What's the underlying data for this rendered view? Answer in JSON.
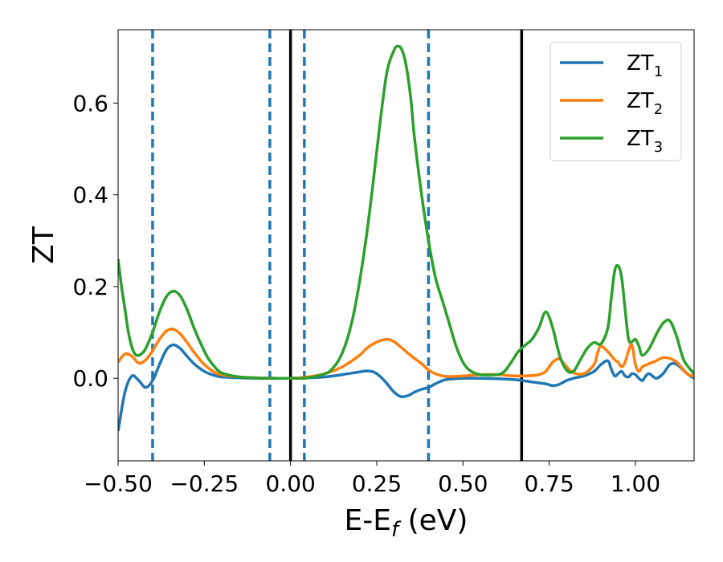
{
  "chart_data": {
    "type": "line",
    "xlabel": "E-E",
    "xlabel_sub": "f",
    "xlabel_unit": " (eV)",
    "ylabel": "ZT",
    "xlim": [
      -0.5,
      1.17
    ],
    "ylim": [
      -0.18,
      0.76
    ],
    "xticks": [
      -0.5,
      -0.25,
      0.0,
      0.25,
      0.5,
      0.75,
      1.0
    ],
    "xtick_labels": [
      "−0.50",
      "−0.25",
      "0.00",
      "0.25",
      "0.50",
      "0.75",
      "1.00"
    ],
    "yticks": [
      0.0,
      0.2,
      0.4,
      0.6
    ],
    "ytick_labels": [
      "0.0",
      "0.2",
      "0.4",
      "0.6"
    ],
    "legend_position": "top-right",
    "grid": false,
    "vlines_solid": [
      0.0,
      0.67
    ],
    "vlines_dashed": [
      -0.4,
      -0.06,
      0.04,
      0.4
    ],
    "series": [
      {
        "name": "ZT",
        "name_sub": "1",
        "color": "#1f77b4",
        "x": [
          -0.5,
          -0.48,
          -0.46,
          -0.44,
          -0.42,
          -0.4,
          -0.38,
          -0.36,
          -0.34,
          -0.32,
          -0.3,
          -0.28,
          -0.25,
          -0.22,
          -0.2,
          -0.15,
          -0.1,
          -0.05,
          0.0,
          0.05,
          0.1,
          0.15,
          0.2,
          0.22,
          0.24,
          0.26,
          0.28,
          0.3,
          0.32,
          0.34,
          0.36,
          0.38,
          0.4,
          0.42,
          0.45,
          0.5,
          0.55,
          0.6,
          0.65,
          0.7,
          0.72,
          0.74,
          0.76,
          0.78,
          0.8,
          0.82,
          0.85,
          0.88,
          0.9,
          0.92,
          0.93,
          0.94,
          0.95,
          0.96,
          0.97,
          0.98,
          0.99,
          1.0,
          1.01,
          1.02,
          1.03,
          1.04,
          1.06,
          1.08,
          1.1,
          1.12,
          1.15,
          1.17
        ],
        "y": [
          -0.115,
          -0.03,
          0.005,
          -0.005,
          -0.02,
          -0.005,
          0.03,
          0.062,
          0.073,
          0.065,
          0.048,
          0.032,
          0.015,
          0.006,
          0.003,
          0.001,
          0.0,
          0.0,
          0.0,
          0.001,
          0.003,
          0.008,
          0.014,
          0.016,
          0.014,
          0.004,
          -0.012,
          -0.03,
          -0.04,
          -0.038,
          -0.03,
          -0.024,
          -0.02,
          -0.012,
          -0.003,
          0.0,
          0.0,
          -0.001,
          -0.003,
          -0.008,
          -0.01,
          -0.012,
          -0.016,
          -0.013,
          -0.005,
          0.0,
          0.005,
          0.015,
          0.03,
          0.038,
          0.02,
          0.005,
          0.01,
          0.015,
          0.005,
          0.003,
          0.01,
          0.008,
          0.0,
          -0.005,
          0.005,
          0.01,
          0.0,
          0.01,
          0.03,
          0.03,
          0.01,
          0.0
        ]
      },
      {
        "name": "ZT",
        "name_sub": "2",
        "color": "#ff7f0e",
        "x": [
          -0.5,
          -0.48,
          -0.46,
          -0.44,
          -0.42,
          -0.4,
          -0.38,
          -0.36,
          -0.34,
          -0.32,
          -0.3,
          -0.28,
          -0.25,
          -0.22,
          -0.2,
          -0.15,
          -0.1,
          -0.05,
          0.0,
          0.05,
          0.1,
          0.15,
          0.2,
          0.22,
          0.24,
          0.26,
          0.28,
          0.3,
          0.32,
          0.34,
          0.36,
          0.38,
          0.4,
          0.42,
          0.45,
          0.5,
          0.55,
          0.6,
          0.65,
          0.7,
          0.72,
          0.74,
          0.76,
          0.78,
          0.8,
          0.82,
          0.85,
          0.88,
          0.89,
          0.9,
          0.92,
          0.94,
          0.95,
          0.96,
          0.97,
          0.98,
          0.99,
          1.0,
          1.01,
          1.02,
          1.04,
          1.06,
          1.08,
          1.1,
          1.12,
          1.15,
          1.17
        ],
        "y": [
          0.035,
          0.053,
          0.048,
          0.033,
          0.04,
          0.06,
          0.085,
          0.103,
          0.107,
          0.097,
          0.078,
          0.057,
          0.03,
          0.013,
          0.008,
          0.003,
          0.001,
          0.0,
          0.0,
          0.003,
          0.01,
          0.025,
          0.05,
          0.065,
          0.075,
          0.082,
          0.085,
          0.08,
          0.068,
          0.055,
          0.043,
          0.032,
          0.018,
          0.01,
          0.004,
          0.005,
          0.008,
          0.008,
          0.005,
          0.006,
          0.008,
          0.015,
          0.035,
          0.042,
          0.025,
          0.012,
          0.01,
          0.03,
          0.055,
          0.07,
          0.058,
          0.04,
          0.035,
          0.025,
          0.035,
          0.06,
          0.072,
          0.03,
          0.015,
          0.025,
          0.032,
          0.038,
          0.045,
          0.043,
          0.035,
          0.01,
          0.005
        ]
      },
      {
        "name": "ZT",
        "name_sub": "3",
        "color": "#2ca02c",
        "x": [
          -0.5,
          -0.49,
          -0.48,
          -0.47,
          -0.46,
          -0.45,
          -0.44,
          -0.43,
          -0.42,
          -0.4,
          -0.38,
          -0.36,
          -0.34,
          -0.32,
          -0.3,
          -0.28,
          -0.26,
          -0.24,
          -0.22,
          -0.2,
          -0.15,
          -0.1,
          -0.05,
          0.0,
          0.05,
          0.1,
          0.12,
          0.14,
          0.16,
          0.18,
          0.2,
          0.22,
          0.24,
          0.26,
          0.28,
          0.3,
          0.31,
          0.32,
          0.33,
          0.34,
          0.35,
          0.36,
          0.38,
          0.4,
          0.42,
          0.44,
          0.46,
          0.48,
          0.5,
          0.52,
          0.55,
          0.6,
          0.62,
          0.64,
          0.66,
          0.68,
          0.7,
          0.72,
          0.74,
          0.76,
          0.78,
          0.8,
          0.82,
          0.84,
          0.86,
          0.88,
          0.9,
          0.92,
          0.93,
          0.94,
          0.95,
          0.96,
          0.97,
          0.98,
          0.99,
          1.0,
          1.01,
          1.02,
          1.04,
          1.06,
          1.08,
          1.1,
          1.12,
          1.14,
          1.17
        ],
        "y": [
          0.26,
          0.2,
          0.15,
          0.1,
          0.068,
          0.052,
          0.05,
          0.055,
          0.065,
          0.1,
          0.145,
          0.178,
          0.19,
          0.18,
          0.15,
          0.11,
          0.075,
          0.045,
          0.025,
          0.012,
          0.003,
          0.001,
          0.0,
          0.0,
          0.001,
          0.01,
          0.02,
          0.04,
          0.075,
          0.13,
          0.21,
          0.31,
          0.43,
          0.56,
          0.67,
          0.715,
          0.724,
          0.72,
          0.7,
          0.66,
          0.6,
          0.52,
          0.4,
          0.3,
          0.22,
          0.17,
          0.12,
          0.07,
          0.035,
          0.017,
          0.008,
          0.008,
          0.015,
          0.035,
          0.058,
          0.072,
          0.085,
          0.11,
          0.145,
          0.11,
          0.05,
          0.018,
          0.015,
          0.04,
          0.065,
          0.078,
          0.075,
          0.11,
          0.175,
          0.235,
          0.245,
          0.22,
          0.15,
          0.085,
          0.08,
          0.085,
          0.07,
          0.05,
          0.065,
          0.095,
          0.12,
          0.125,
          0.09,
          0.04,
          0.01
        ]
      }
    ]
  }
}
